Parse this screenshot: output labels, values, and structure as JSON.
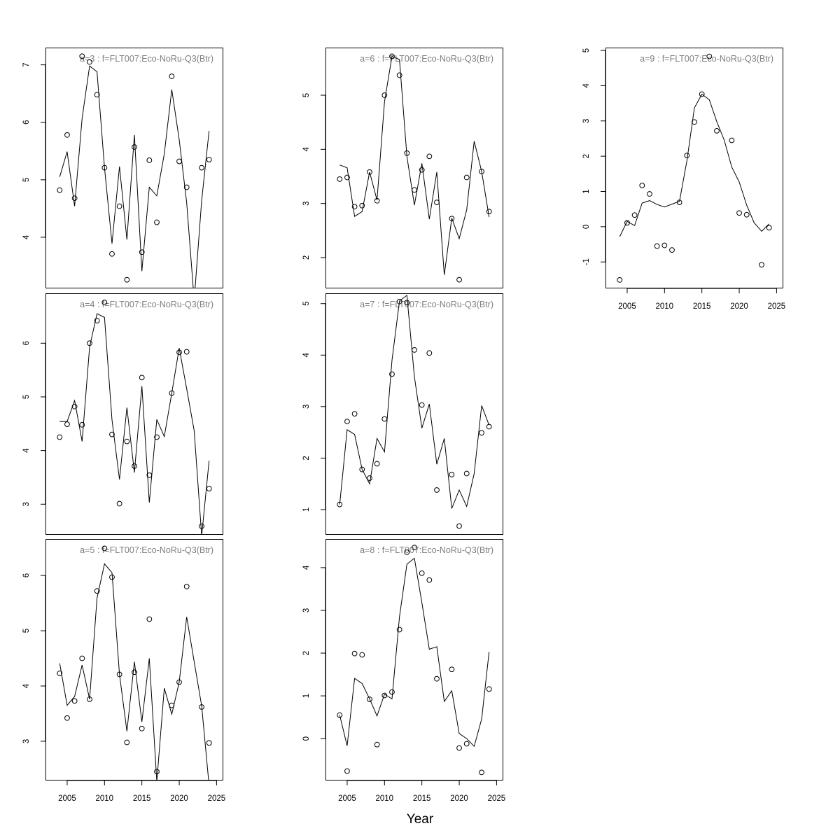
{
  "xlabel": "Year",
  "colors": {
    "points": "#000000",
    "line": "#000000",
    "title": "#808080"
  },
  "chart_data": [
    {
      "type": "line",
      "title": "a=3  :  f=FLT007:Eco-NoRu-Q3(Btr)",
      "xlim": [
        2002.1,
        2025.9
      ],
      "ylim": [
        3.11,
        7.3
      ],
      "yticks": [
        4,
        5,
        6,
        7
      ],
      "xticks": [],
      "x": [
        2004,
        2005,
        2006,
        2007,
        2008,
        2009,
        2010,
        2011,
        2012,
        2013,
        2014,
        2015,
        2016,
        2017,
        2018,
        2019,
        2020,
        2021,
        2022,
        2023,
        2024
      ],
      "series": [
        {
          "kind": "points",
          "values": [
            4.82,
            5.78,
            4.68,
            7.15,
            7.05,
            6.48,
            5.21,
            3.71,
            4.54,
            3.26,
            5.57,
            3.74,
            5.34,
            4.26,
            null,
            6.8,
            5.32,
            4.87,
            null,
            5.21,
            5.35
          ]
        },
        {
          "kind": "line",
          "values": [
            5.05,
            5.49,
            4.54,
            6.07,
            6.98,
            6.88,
            5.21,
            3.89,
            5.23,
            3.96,
            5.78,
            3.41,
            4.87,
            4.72,
            5.45,
            6.57,
            5.7,
            4.6,
            2.9,
            4.64,
            5.85
          ]
        }
      ]
    },
    {
      "type": "line",
      "title": "a=4  :  f=FLT007:Eco-NoRu-Q3(Btr)",
      "xlim": [
        2002.1,
        2025.9
      ],
      "ylim": [
        2.43,
        6.93
      ],
      "yticks": [
        3,
        4,
        5,
        6
      ],
      "xticks": [],
      "x": [
        2004,
        2005,
        2006,
        2007,
        2008,
        2009,
        2010,
        2011,
        2012,
        2013,
        2014,
        2015,
        2016,
        2017,
        2018,
        2019,
        2020,
        2021,
        2022,
        2023,
        2024
      ],
      "series": [
        {
          "kind": "points",
          "values": [
            4.25,
            4.49,
            4.82,
            4.48,
            6.0,
            6.42,
            6.76,
            4.3,
            3.01,
            4.17,
            3.71,
            5.36,
            3.54,
            4.25,
            null,
            5.07,
            5.83,
            5.84,
            null,
            2.59,
            3.29
          ]
        },
        {
          "kind": "line",
          "values": [
            4.54,
            4.54,
            4.93,
            4.17,
            5.93,
            6.55,
            6.48,
            4.57,
            3.46,
            4.8,
            3.59,
            5.2,
            3.03,
            4.58,
            4.26,
            5.07,
            5.91,
            5.15,
            4.37,
            2.41,
            3.81
          ]
        }
      ]
    },
    {
      "type": "line",
      "title": "a=5  :  f=FLT007:Eco-NoRu-Q3(Btr)",
      "xlim": [
        2002.1,
        2025.9
      ],
      "ylim": [
        2.29,
        6.66
      ],
      "yticks": [
        3,
        4,
        5,
        6
      ],
      "xticks": [
        2005,
        2010,
        2015,
        2020,
        2025
      ],
      "x": [
        2004,
        2005,
        2006,
        2007,
        2008,
        2009,
        2010,
        2011,
        2012,
        2013,
        2014,
        2015,
        2016,
        2017,
        2018,
        2019,
        2020,
        2021,
        2022,
        2023,
        2024
      ],
      "series": [
        {
          "kind": "points",
          "values": [
            4.23,
            3.42,
            3.73,
            4.5,
            3.76,
            5.72,
            6.49,
            5.97,
            4.21,
            2.98,
            4.25,
            3.23,
            5.21,
            2.45,
            null,
            3.65,
            4.07,
            5.8,
            null,
            3.62,
            2.97
          ]
        },
        {
          "kind": "line",
          "values": [
            4.41,
            3.65,
            3.81,
            4.38,
            3.76,
            5.59,
            6.21,
            6.05,
            4.21,
            3.18,
            4.44,
            3.35,
            4.5,
            2.27,
            3.96,
            3.49,
            4.07,
            5.25,
            4.44,
            3.64,
            2.2
          ]
        }
      ]
    },
    {
      "type": "line",
      "title": "a=6  :  f=FLT007:Eco-NoRu-Q3(Btr)",
      "xlim": [
        2002.1,
        2025.9
      ],
      "ylim": [
        1.43,
        5.88
      ],
      "yticks": [
        2,
        3,
        4,
        5
      ],
      "xticks": [],
      "x": [
        2004,
        2005,
        2006,
        2007,
        2008,
        2009,
        2010,
        2011,
        2012,
        2013,
        2014,
        2015,
        2016,
        2017,
        2018,
        2019,
        2020,
        2021,
        2022,
        2023,
        2024
      ],
      "series": [
        {
          "kind": "points",
          "values": [
            3.45,
            3.48,
            2.94,
            2.96,
            3.58,
            3.05,
            5.0,
            5.72,
            5.37,
            3.93,
            3.25,
            3.62,
            3.87,
            3.02,
            null,
            2.72,
            1.59,
            3.48,
            null,
            3.59,
            2.85
          ]
        },
        {
          "kind": "line",
          "values": [
            3.71,
            3.66,
            2.76,
            2.85,
            3.58,
            3.06,
            4.88,
            5.72,
            5.66,
            3.87,
            2.97,
            3.74,
            2.71,
            3.58,
            1.68,
            2.73,
            2.35,
            2.88,
            4.15,
            3.59,
            2.75
          ]
        }
      ]
    },
    {
      "type": "line",
      "title": "a=7  :  f=FLT007:Eco-NoRu-Q3(Btr)",
      "xlim": [
        2002.1,
        2025.9
      ],
      "ylim": [
        0.51,
        5.2
      ],
      "yticks": [
        1,
        2,
        3,
        4,
        5
      ],
      "xticks": [],
      "x": [
        2004,
        2005,
        2006,
        2007,
        2008,
        2009,
        2010,
        2011,
        2012,
        2013,
        2014,
        2015,
        2016,
        2017,
        2018,
        2019,
        2020,
        2021,
        2022,
        2023,
        2024
      ],
      "series": [
        {
          "kind": "points",
          "values": [
            1.1,
            2.71,
            2.86,
            1.78,
            1.61,
            1.89,
            2.76,
            3.63,
            5.04,
            5.02,
            4.1,
            3.03,
            4.04,
            1.38,
            null,
            1.68,
            0.68,
            1.7,
            null,
            2.49,
            2.61
          ]
        },
        {
          "kind": "line",
          "values": [
            1.1,
            2.55,
            2.46,
            1.78,
            1.5,
            2.38,
            2.12,
            3.9,
            5.05,
            5.16,
            3.58,
            2.58,
            3.05,
            1.88,
            2.38,
            1.02,
            1.38,
            1.06,
            1.7,
            3.02,
            2.64
          ]
        }
      ]
    },
    {
      "type": "line",
      "title": "a=8  :  f=FLT007:Eco-NoRu-Q3(Btr)",
      "xlim": [
        2002.1,
        2025.9
      ],
      "ylim": [
        -0.98,
        4.67
      ],
      "yticks": [
        0,
        1,
        2,
        3,
        4
      ],
      "xticks": [
        2005,
        2010,
        2015,
        2020,
        2025
      ],
      "x": [
        2004,
        2005,
        2006,
        2007,
        2008,
        2009,
        2010,
        2011,
        2012,
        2013,
        2014,
        2015,
        2016,
        2017,
        2018,
        2019,
        2020,
        2021,
        2022,
        2023,
        2024
      ],
      "series": [
        {
          "kind": "points",
          "values": [
            0.55,
            -0.76,
            1.99,
            1.96,
            0.92,
            -0.14,
            1.01,
            1.09,
            2.55,
            4.36,
            4.47,
            3.87,
            3.71,
            1.4,
            null,
            1.62,
            -0.22,
            -0.12,
            null,
            -0.79,
            1.16
          ]
        },
        {
          "kind": "line",
          "values": [
            0.55,
            -0.17,
            1.41,
            1.29,
            0.93,
            0.53,
            1.04,
            0.93,
            2.85,
            4.08,
            4.22,
            3.18,
            2.09,
            2.15,
            0.87,
            1.12,
            0.12,
            0.0,
            -0.18,
            0.46,
            2.03
          ]
        }
      ]
    },
    {
      "type": "line",
      "title": "a=9  :  f=FLT007:Eco-NoRu-Q3(Btr)",
      "xlim": [
        2002.1,
        2025.9
      ],
      "ylim": [
        -1.75,
        5.08
      ],
      "yticks": [
        -1,
        0,
        1,
        2,
        3,
        4,
        5
      ],
      "xticks": [
        2005,
        2010,
        2015,
        2020,
        2025
      ],
      "x": [
        2004,
        2005,
        2006,
        2007,
        2008,
        2009,
        2010,
        2011,
        2012,
        2013,
        2014,
        2015,
        2016,
        2017,
        2018,
        2019,
        2020,
        2021,
        2022,
        2023,
        2024
      ],
      "series": [
        {
          "kind": "points",
          "values": [
            -1.51,
            0.11,
            0.33,
            1.17,
            0.93,
            -0.55,
            -0.53,
            -0.66,
            0.69,
            2.02,
            2.97,
            3.76,
            4.83,
            2.72,
            null,
            2.45,
            0.39,
            0.34,
            null,
            -1.08,
            -0.03
          ]
        },
        {
          "kind": "line",
          "values": [
            -0.28,
            0.15,
            0.03,
            0.67,
            0.74,
            0.63,
            0.56,
            0.64,
            0.72,
            1.87,
            3.37,
            3.76,
            3.6,
            2.98,
            2.45,
            1.69,
            1.27,
            0.61,
            0.11,
            -0.13,
            0.08
          ]
        }
      ]
    }
  ]
}
